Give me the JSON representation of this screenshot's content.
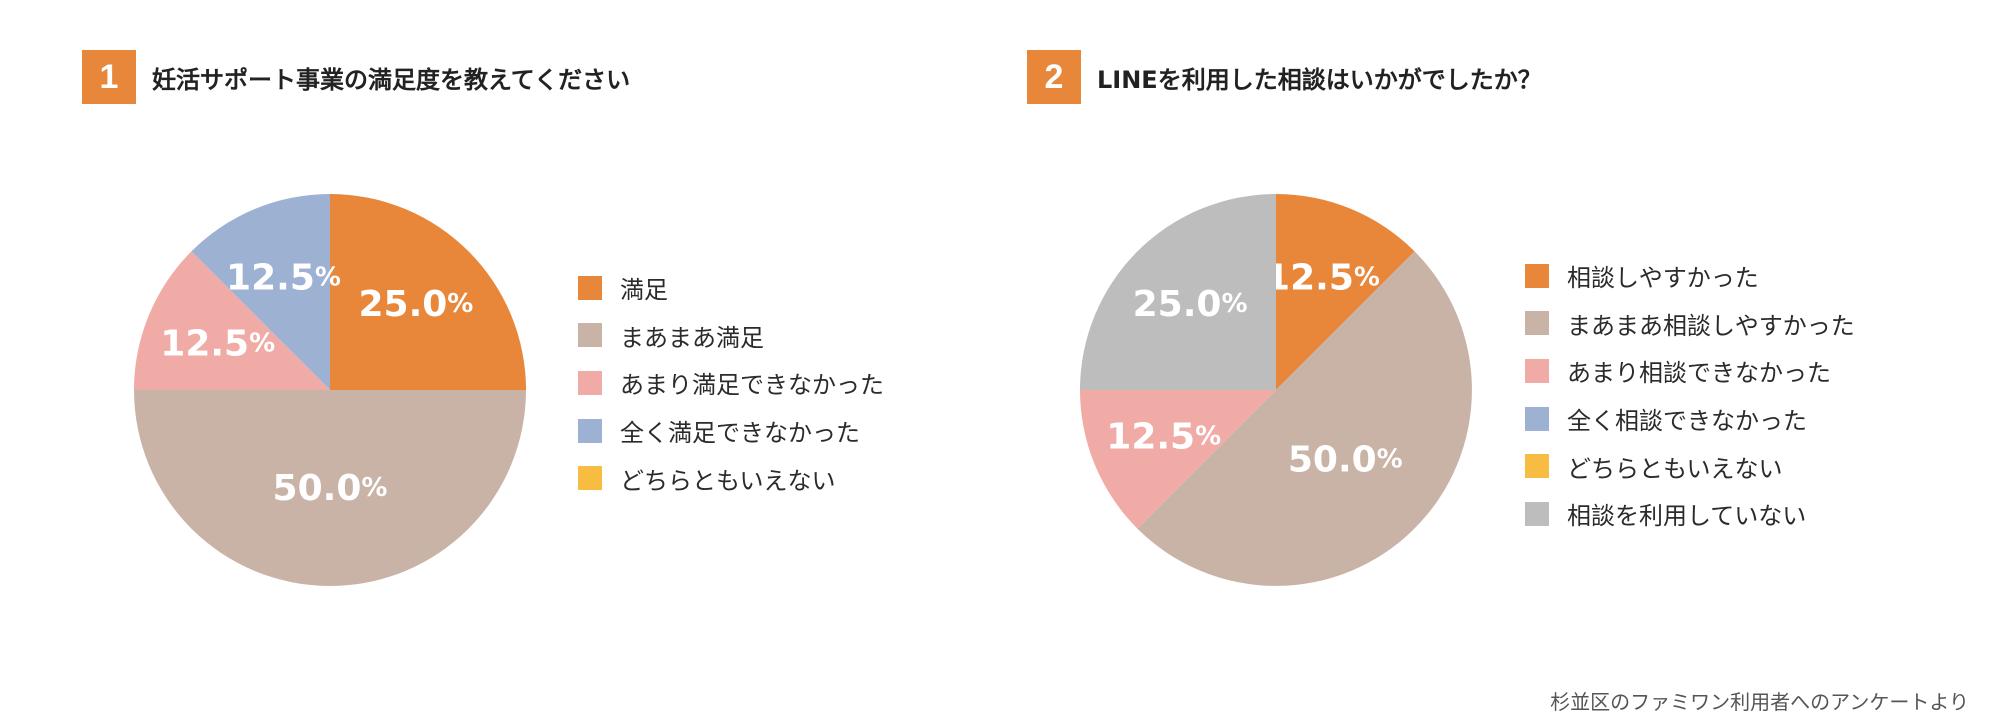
{
  "colors": {
    "accent": "#e8873a",
    "series": [
      "#e8873a",
      "#c9b3a6",
      "#f0aba7",
      "#9db2d3",
      "#f6bd42",
      "#bdbdbd"
    ]
  },
  "chart_data": [
    {
      "type": "pie",
      "number": "1",
      "title": "妊活サポート事業の満足度を教えてください",
      "categories": [
        "満足",
        "まあまあ満足",
        "あまり満足できなかった",
        "全く満足できなかった",
        "どちらともいえない"
      ],
      "values": [
        25.0,
        50.0,
        12.5,
        12.5,
        0
      ],
      "value_labels": [
        "25.0",
        "50.0",
        "12.5",
        "12.5",
        ""
      ],
      "percent_sign": "%",
      "colors": [
        "#e8873a",
        "#c9b3a6",
        "#f0aba7",
        "#9db2d3",
        "#f6bd42"
      ],
      "legend": "right"
    },
    {
      "type": "pie",
      "number": "2",
      "title": "LINEを利用した相談はいかがでしたか？",
      "categories": [
        "相談しやすかった",
        "まあまあ相談しやすかった",
        "あまり相談できなかった",
        "全く相談できなかった",
        "どちらともいえない",
        "相談を利用していない"
      ],
      "values": [
        12.5,
        50.0,
        12.5,
        0,
        0,
        25.0
      ],
      "value_labels": [
        "12.5",
        "50.0",
        "12.5",
        "",
        "",
        "25.0"
      ],
      "percent_sign": "%",
      "colors": [
        "#e8873a",
        "#c9b3a6",
        "#f0aba7",
        "#9db2d3",
        "#f6bd42",
        "#bdbdbd"
      ],
      "legend": "right"
    }
  ],
  "footer": {
    "source": "杉並区のファミワン利用者へのアンケートより"
  }
}
